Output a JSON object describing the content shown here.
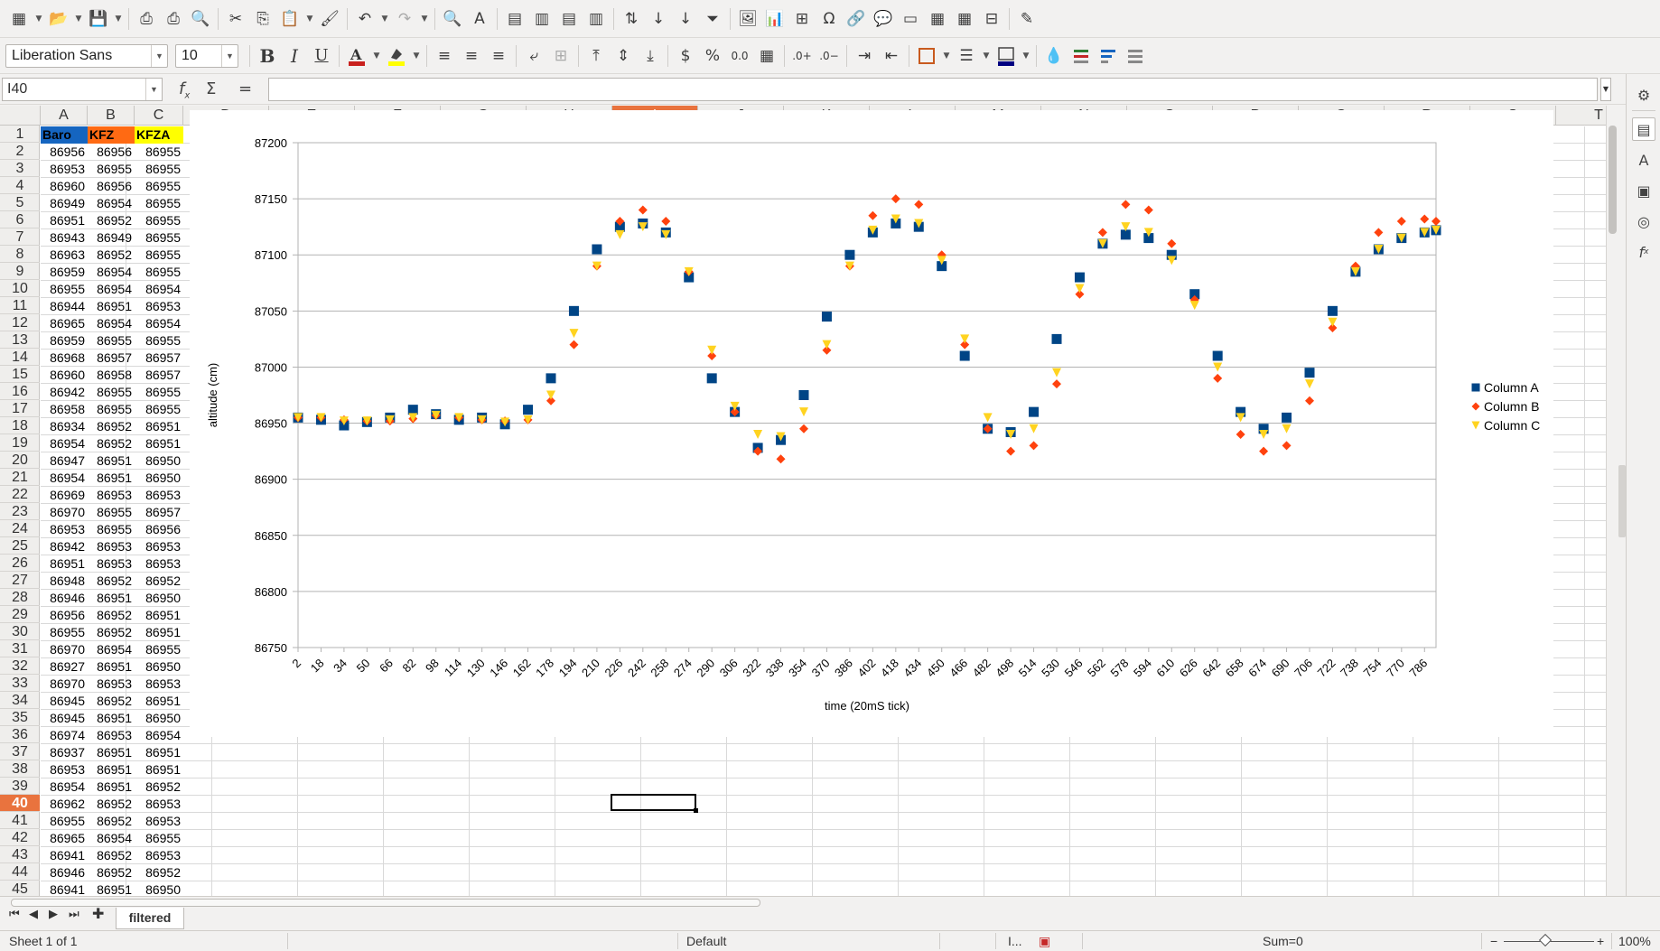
{
  "toolbar1": {
    "icons": [
      "new-spreadsheet-icon",
      "open-icon",
      "save-icon",
      "export-pdf-icon",
      "print-icon",
      "print-preview-icon",
      "cut-icon",
      "copy-icon",
      "paste-icon",
      "clone-formatting-icon",
      "undo-icon",
      "redo-icon",
      "find-replace-icon",
      "spelling-icon",
      "row-icon",
      "column-icon",
      "delete-row-icon",
      "delete-column-icon",
      "sort-icon",
      "sort-ascending-icon",
      "sort-descending-icon",
      "autofilter-icon",
      "insert-image-icon",
      "insert-chart-icon",
      "pivot-table-icon",
      "special-character-icon",
      "hyperlink-icon",
      "comment-icon",
      "headers-footers-icon",
      "define-print-area-icon",
      "freeze-rows-columns-icon",
      "split-window-icon",
      "show-draw-functions-icon"
    ]
  },
  "toolbar2": {
    "font_name": "Liberation Sans",
    "font_size": "10",
    "font_color": "#c9211e",
    "highlight_color": "#ffff00",
    "border_color": "#000080"
  },
  "formula_bar": {
    "cell_ref": "I40",
    "content": ""
  },
  "columns": [
    "A",
    "B",
    "C",
    "D",
    "E",
    "F",
    "G",
    "H",
    "I",
    "J",
    "K",
    "L",
    "M",
    "N",
    "O",
    "P",
    "Q",
    "R",
    "S",
    "T"
  ],
  "selected_column": "I",
  "selected_row": "40",
  "header_row": {
    "A": {
      "text": "Baro",
      "color": "#1565c0"
    },
    "B": {
      "text": "KFZ",
      "color": "#ff6a13"
    },
    "C": {
      "text": "KFZA",
      "color": "#ffff00"
    }
  },
  "data_rows": [
    [
      "86956",
      "86956",
      "86955"
    ],
    [
      "86953",
      "86955",
      "86955"
    ],
    [
      "86960",
      "86956",
      "86955"
    ],
    [
      "86949",
      "86954",
      "86955"
    ],
    [
      "86951",
      "86952",
      "86955"
    ],
    [
      "86943",
      "86949",
      "86955"
    ],
    [
      "86963",
      "86952",
      "86955"
    ],
    [
      "86959",
      "86954",
      "86955"
    ],
    [
      "86955",
      "86954",
      "86954"
    ],
    [
      "86944",
      "86951",
      "86953"
    ],
    [
      "86965",
      "86954",
      "86954"
    ],
    [
      "86959",
      "86955",
      "86955"
    ],
    [
      "86968",
      "86957",
      "86957"
    ],
    [
      "86960",
      "86958",
      "86957"
    ],
    [
      "86942",
      "86955",
      "86955"
    ],
    [
      "86958",
      "86955",
      "86955"
    ],
    [
      "86934",
      "86952",
      "86951"
    ],
    [
      "86954",
      "86952",
      "86951"
    ],
    [
      "86947",
      "86951",
      "86950"
    ],
    [
      "86954",
      "86951",
      "86950"
    ],
    [
      "86969",
      "86953",
      "86953"
    ],
    [
      "86970",
      "86955",
      "86957"
    ],
    [
      "86953",
      "86955",
      "86956"
    ],
    [
      "86942",
      "86953",
      "86953"
    ],
    [
      "86951",
      "86953",
      "86953"
    ],
    [
      "86948",
      "86952",
      "86952"
    ],
    [
      "86946",
      "86951",
      "86950"
    ],
    [
      "86956",
      "86952",
      "86951"
    ],
    [
      "86955",
      "86952",
      "86951"
    ],
    [
      "86970",
      "86954",
      "86955"
    ],
    [
      "86927",
      "86951",
      "86950"
    ],
    [
      "86970",
      "86953",
      "86953"
    ],
    [
      "86945",
      "86952",
      "86951"
    ],
    [
      "86945",
      "86951",
      "86950"
    ],
    [
      "86974",
      "86953",
      "86954"
    ],
    [
      "86937",
      "86951",
      "86951"
    ],
    [
      "86953",
      "86951",
      "86951"
    ],
    [
      "86954",
      "86951",
      "86952"
    ],
    [
      "86962",
      "86952",
      "86953"
    ],
    [
      "86955",
      "86952",
      "86953"
    ],
    [
      "86965",
      "86954",
      "86955"
    ],
    [
      "86941",
      "86952",
      "86953"
    ],
    [
      "86946",
      "86952",
      "86952"
    ],
    [
      "86941",
      "86951",
      "86950"
    ]
  ],
  "chart_data": {
    "type": "scatter",
    "title": "",
    "xlabel": "time  (20mS tick)",
    "ylabel": "altitude (cm)",
    "ylim": [
      86750,
      87200
    ],
    "yticks": [
      86750,
      86800,
      86850,
      86900,
      86950,
      87000,
      87050,
      87100,
      87150,
      87200
    ],
    "xlim": [
      2,
      794
    ],
    "xticks": [
      2,
      18,
      34,
      50,
      66,
      82,
      98,
      114,
      130,
      146,
      162,
      178,
      194,
      210,
      226,
      242,
      258,
      274,
      290,
      306,
      322,
      338,
      354,
      370,
      386,
      402,
      418,
      434,
      450,
      466,
      482,
      498,
      514,
      530,
      546,
      562,
      578,
      594,
      610,
      626,
      642,
      658,
      674,
      690,
      706,
      722,
      738,
      754,
      770,
      786
    ],
    "grid": "horizontal",
    "legend_position": "right",
    "series": [
      {
        "name": "Column A",
        "color": "#004586",
        "marker": "square",
        "x": [
          2,
          18,
          34,
          50,
          66,
          82,
          98,
          114,
          130,
          146,
          162,
          178,
          194,
          210,
          226,
          242,
          258,
          274,
          290,
          306,
          322,
          338,
          354,
          370,
          386,
          402,
          418,
          434,
          450,
          466,
          482,
          498,
          514,
          530,
          546,
          562,
          578,
          594,
          610,
          626,
          642,
          658,
          674,
          690,
          706,
          722,
          738,
          754,
          770,
          786,
          794
        ],
        "values": [
          86955,
          86953,
          86948,
          86951,
          86955,
          86962,
          86958,
          86953,
          86955,
          86949,
          86962,
          86990,
          87050,
          87105,
          87125,
          87128,
          87120,
          87080,
          86990,
          86960,
          86928,
          86935,
          86975,
          87045,
          87100,
          87120,
          87128,
          87125,
          87090,
          87010,
          86945,
          86942,
          86960,
          87025,
          87080,
          87110,
          87118,
          87115,
          87100,
          87065,
          87010,
          86960,
          86945,
          86955,
          86995,
          87050,
          87085,
          87105,
          87115,
          87120,
          87122
        ]
      },
      {
        "name": "Column B",
        "color": "#ff420e",
        "marker": "diamond",
        "x": [
          2,
          18,
          34,
          50,
          66,
          82,
          98,
          114,
          130,
          146,
          162,
          178,
          194,
          210,
          226,
          242,
          258,
          274,
          290,
          306,
          322,
          338,
          354,
          370,
          386,
          402,
          418,
          434,
          450,
          466,
          482,
          498,
          514,
          530,
          546,
          562,
          578,
          594,
          610,
          626,
          642,
          658,
          674,
          690,
          706,
          722,
          738,
          754,
          770,
          786,
          794
        ],
        "values": [
          86955,
          86955,
          86953,
          86952,
          86952,
          86954,
          86957,
          86955,
          86953,
          86952,
          86953,
          86970,
          87020,
          87090,
          87130,
          87140,
          87130,
          87085,
          87010,
          86960,
          86925,
          86918,
          86945,
          87015,
          87090,
          87135,
          87150,
          87145,
          87100,
          87020,
          86945,
          86925,
          86930,
          86985,
          87065,
          87120,
          87145,
          87140,
          87110,
          87060,
          86990,
          86940,
          86925,
          86930,
          86970,
          87035,
          87090,
          87120,
          87130,
          87132,
          87130
        ]
      },
      {
        "name": "Column C",
        "color": "#ffd320",
        "marker": "triangle-down",
        "x": [
          2,
          18,
          34,
          50,
          66,
          82,
          98,
          114,
          130,
          146,
          162,
          178,
          194,
          210,
          226,
          242,
          258,
          274,
          290,
          306,
          322,
          338,
          354,
          370,
          386,
          402,
          418,
          434,
          450,
          466,
          482,
          498,
          514,
          530,
          546,
          562,
          578,
          594,
          610,
          626,
          642,
          658,
          674,
          690,
          706,
          722,
          738,
          754,
          770,
          786,
          794
        ],
        "values": [
          86955,
          86955,
          86952,
          86952,
          86953,
          86955,
          86957,
          86955,
          86953,
          86951,
          86953,
          86975,
          87030,
          87090,
          87118,
          87125,
          87118,
          87085,
          87015,
          86965,
          86940,
          86938,
          86960,
          87020,
          87090,
          87122,
          87132,
          87128,
          87095,
          87025,
          86955,
          86940,
          86945,
          86995,
          87070,
          87110,
          87125,
          87120,
          87095,
          87055,
          87000,
          86955,
          86940,
          86945,
          86985,
          87040,
          87085,
          87105,
          87115,
          87120,
          87122
        ]
      }
    ]
  },
  "tabs": {
    "sheet_name": "filtered"
  },
  "status": {
    "sheet_info": "Sheet 1 of 1",
    "page_style": "Default",
    "selection_mode": "I...",
    "sum": "Sum=0",
    "zoom": "100%"
  }
}
